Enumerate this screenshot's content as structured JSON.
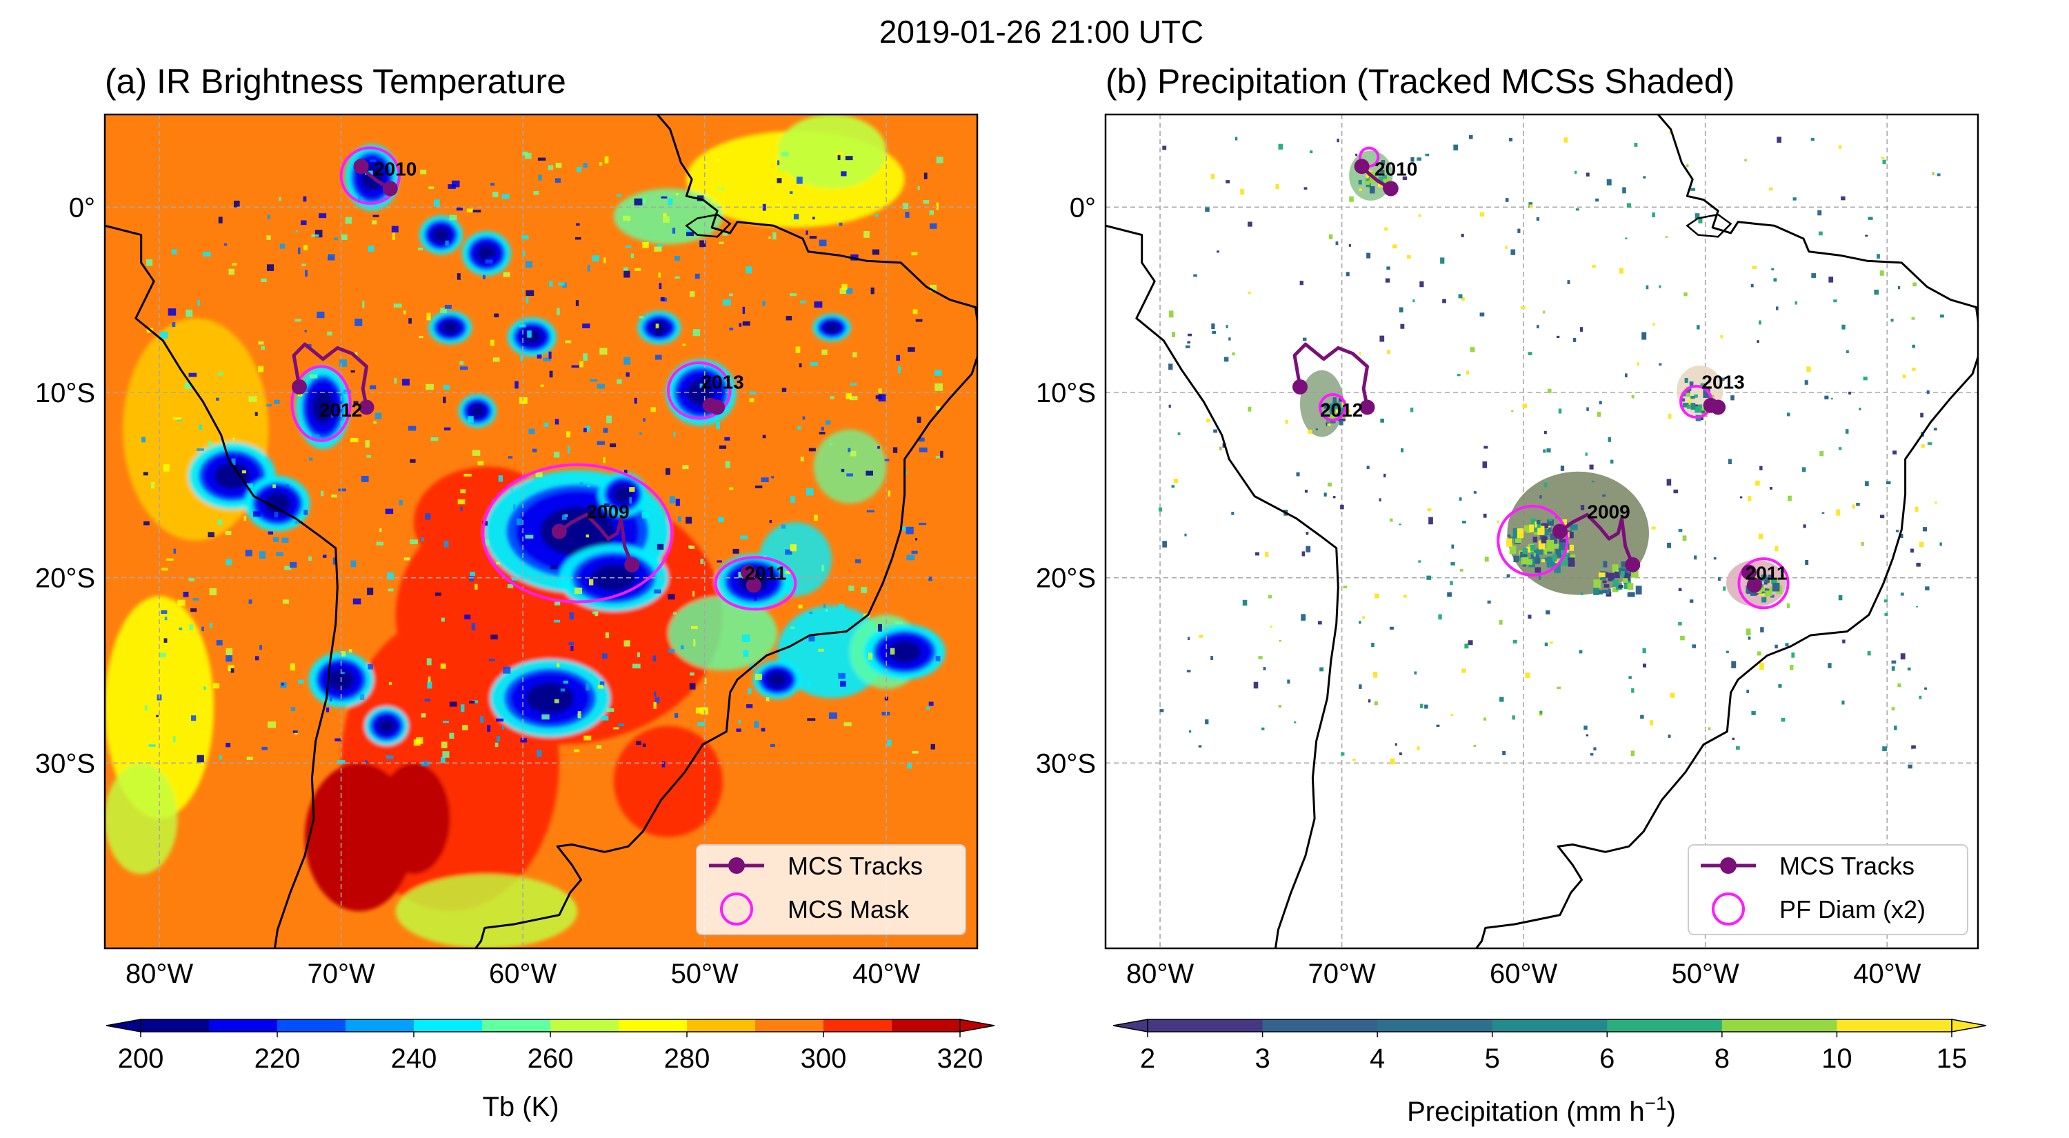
{
  "figure": {
    "suptitle": "2019-01-26 21:00 UTC"
  },
  "map": {
    "lon_range": [
      -83,
      -35
    ],
    "lat_range": [
      -40,
      5
    ],
    "lon_ticks": [
      -80,
      -70,
      -60,
      -50,
      -40
    ],
    "lat_ticks": [
      0,
      -10,
      -20,
      -30
    ],
    "lon_tick_labels": [
      "80°W",
      "70°W",
      "60°W",
      "50°W",
      "40°W"
    ],
    "lat_tick_labels": [
      "0°",
      "10°S",
      "20°S",
      "30°S"
    ]
  },
  "colors": {
    "track": "#7b0f7a",
    "mask": "#ff1cff",
    "ir_background": "#ff7f0e",
    "coast": "#000000",
    "grid": "#a8a8a8"
  },
  "panels": {
    "a": {
      "title": "(a) IR Brightness Temperature",
      "legend": [
        "MCS Tracks",
        "MCS Mask"
      ],
      "colorbar_label": "Tb (K)"
    },
    "b": {
      "title": "(b) Precipitation (Tracked MCSs Shaded)",
      "legend": [
        "MCS Tracks",
        "PF Diam (x2)"
      ],
      "colorbar_label_main": "Precipitation (mm h",
      "colorbar_label_sup": "−1",
      "colorbar_label_end": ")"
    }
  },
  "chart_data": [
    {
      "type": "heatmap",
      "title": "(a) IR Brightness Temperature",
      "variable": "Tb (K)",
      "colorbar": {
        "levels": [
          200,
          210,
          220,
          230,
          240,
          250,
          260,
          270,
          280,
          290,
          300,
          310,
          320
        ],
        "tick_labels": [
          "200",
          "220",
          "240",
          "260",
          "280",
          "300",
          "320"
        ],
        "colors": [
          "#00008f",
          "#0000f0",
          "#0050ff",
          "#00a0ff",
          "#00eeff",
          "#60ffa0",
          "#c0ff40",
          "#ffff00",
          "#ffbf00",
          "#ff7f0e",
          "#ff2e00",
          "#bf0000"
        ],
        "extend": "both"
      },
      "legend": [
        "MCS Tracks",
        "MCS Mask"
      ],
      "mcs": [
        {
          "id": "2009",
          "label_lon": -56.5,
          "label_lat": -16.8,
          "track": [
            [
              -58.0,
              -17.5
            ],
            [
              -57.3,
              -17.0
            ],
            [
              -56.5,
              -16.6
            ],
            [
              -55.8,
              -17.3
            ],
            [
              -55.3,
              -17.9
            ],
            [
              -54.8,
              -17.6
            ],
            [
              -54.6,
              -16.8
            ],
            [
              -54.4,
              -18.3
            ],
            [
              -54.0,
              -19.3
            ]
          ],
          "cloud_center": [
            -57.0,
            -17.6
          ],
          "cloud_extent": [
            5.2,
            3.7
          ]
        },
        {
          "id": "2010",
          "label_lon": -68.2,
          "label_lat": 1.7,
          "track": [
            [
              -68.9,
              2.2
            ],
            [
              -68.5,
              1.8
            ],
            [
              -68.0,
              1.4
            ],
            [
              -67.3,
              1.0
            ]
          ],
          "cloud_center": [
            -68.4,
            1.7
          ],
          "cloud_extent": [
            1.6,
            1.5
          ]
        },
        {
          "id": "2011",
          "label_lon": -47.8,
          "label_lat": -20.1,
          "track": [
            [
              -47.6,
              -19.7
            ],
            [
              -47.5,
              -20.3
            ],
            [
              -47.3,
              -20.4
            ]
          ],
          "cloud_center": [
            -47.2,
            -20.3
          ],
          "cloud_extent": [
            2.2,
            1.4
          ]
        },
        {
          "id": "2012",
          "label_lon": -71.2,
          "label_lat": -11.3,
          "track": [
            [
              -72.3,
              -9.7
            ],
            [
              -72.6,
              -8.0
            ],
            [
              -72.0,
              -7.4
            ],
            [
              -71.0,
              -8.2
            ],
            [
              -70.2,
              -7.6
            ],
            [
              -69.4,
              -7.9
            ],
            [
              -68.6,
              -8.6
            ],
            [
              -68.8,
              -9.8
            ],
            [
              -68.6,
              -10.8
            ]
          ],
          "cloud_center": [
            -71.1,
            -10.6
          ],
          "cloud_extent": [
            1.6,
            2.0
          ]
        },
        {
          "id": "2013",
          "label_lon": -50.2,
          "label_lat": -9.8,
          "track": [
            [
              -49.7,
              -10.7
            ],
            [
              -49.3,
              -10.8
            ]
          ],
          "cloud_center": [
            -50.3,
            -9.9
          ],
          "cloud_extent": [
            1.7,
            1.5
          ]
        }
      ]
    },
    {
      "type": "heatmap",
      "title": "(b) Precipitation (Tracked MCSs Shaded)",
      "variable": "Precipitation (mm h−1)",
      "colorbar": {
        "levels": [
          2,
          3,
          4,
          5,
          6,
          8,
          10,
          15
        ],
        "tick_labels": [
          "2",
          "3",
          "4",
          "5",
          "6",
          "8",
          "10",
          "15"
        ],
        "colors": [
          "#453781",
          "#33638d",
          "#2d708e",
          "#238a8d",
          "#29af7f",
          "#95d840",
          "#fde725"
        ],
        "extend": "both"
      },
      "legend": [
        "MCS Tracks",
        "PF Diam (x2)"
      ],
      "pf_circles": [
        {
          "id": "2009",
          "lon": -59.5,
          "lat": -18.0,
          "diameter_deg": 3.8
        },
        {
          "id": "2010",
          "lon": -68.5,
          "lat": 2.7,
          "diameter_deg": 1.0
        },
        {
          "id": "2011",
          "lon": -46.8,
          "lat": -20.3,
          "diameter_deg": 2.7
        },
        {
          "id": "2012",
          "lon": -70.5,
          "lat": -10.8,
          "diameter_deg": 1.4
        },
        {
          "id": "2013",
          "lon": -50.5,
          "lat": -10.5,
          "diameter_deg": 1.7
        }
      ],
      "mcs_shading": [
        {
          "id": "2009",
          "color": "#7f8c6b"
        },
        {
          "id": "2010",
          "color": "#8fc58f"
        },
        {
          "id": "2011",
          "color": "#dcb3bd"
        },
        {
          "id": "2012",
          "color": "#8fa888"
        },
        {
          "id": "2013",
          "color": "#e8d8c2"
        }
      ]
    }
  ]
}
